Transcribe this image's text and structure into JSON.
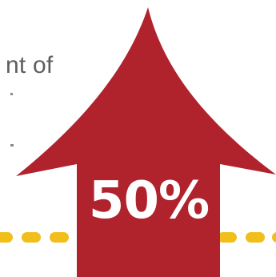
{
  "graphic": {
    "side_text_fragment": "nt of",
    "percent_label": "50%",
    "arrow_icon": "up-arrow-icon",
    "colors": {
      "arrow": "#b0232d",
      "dots": "#f2be1a",
      "text": "#5e5e5e",
      "label": "#ffffff",
      "background": "#ffffff"
    }
  }
}
